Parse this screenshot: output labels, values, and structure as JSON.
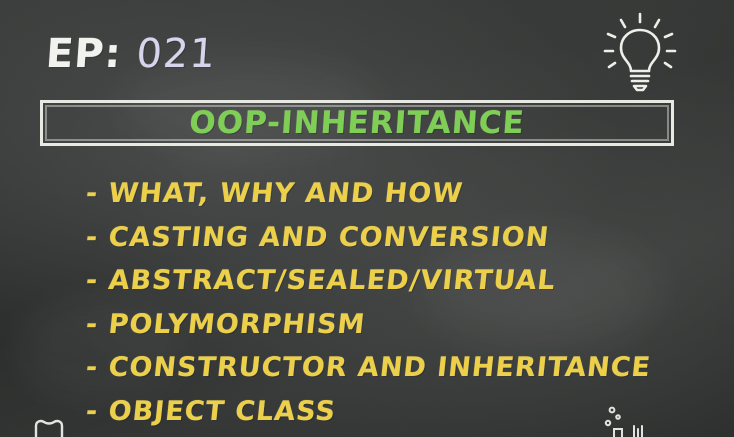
{
  "episode": {
    "prefix": "EP:",
    "number": "021"
  },
  "title": "OOP-INHERITANCE",
  "topics": [
    "- WHAT, WHY AND HOW",
    "- CASTING AND CONVERSION",
    "- ABSTRACT/SEALED/VIRTUAL",
    "- POLYMORPHISM",
    "- CONSTRUCTOR AND INHERITANCE",
    "- OBJECT CLASS"
  ],
  "colors": {
    "chalkWhite": "#f2f2ef",
    "chalkLilac": "#d9d4ee",
    "chalkGreen": "#7fce55",
    "chalkYellow": "#ecd04a",
    "board": "#2f3130"
  }
}
